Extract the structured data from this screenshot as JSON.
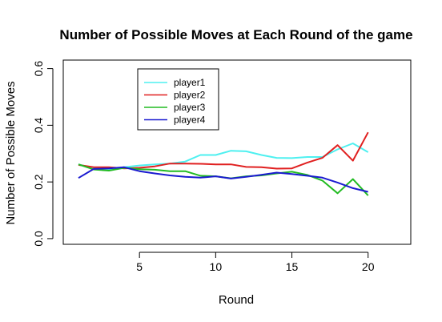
{
  "chart_data": {
    "type": "line",
    "title": "Number of Possible Moves at Each Round of the game",
    "xlabel": "Round",
    "ylabel": "Number of Possible Moves",
    "xlim": [
      0,
      22.8
    ],
    "ylim": [
      -0.02,
      0.63
    ],
    "xticks": [
      5,
      10,
      15,
      20
    ],
    "yticks": [
      0.0,
      0.2,
      0.4,
      0.6
    ],
    "xtick_labels": [
      "5",
      "10",
      "15",
      "20"
    ],
    "ytick_labels": [
      "0.0",
      "0.2",
      "0.4",
      "0.6"
    ],
    "grid": false,
    "legend_position": "top-left",
    "x": [
      1,
      2,
      3,
      4,
      5,
      6,
      7,
      8,
      9,
      10,
      11,
      12,
      13,
      14,
      15,
      16,
      17,
      18,
      19,
      20
    ],
    "series": [
      {
        "name": "player1",
        "color": "#4ef0f0",
        "values": [
          0.262,
          0.248,
          0.245,
          0.252,
          0.258,
          0.262,
          0.265,
          0.272,
          0.295,
          0.295,
          0.31,
          0.308,
          0.295,
          0.285,
          0.284,
          0.288,
          0.288,
          0.315,
          0.336,
          0.305
        ]
      },
      {
        "name": "player2",
        "color": "#e02020",
        "values": [
          0.26,
          0.252,
          0.252,
          0.248,
          0.25,
          0.255,
          0.265,
          0.265,
          0.264,
          0.262,
          0.262,
          0.253,
          0.252,
          0.247,
          0.248,
          0.268,
          0.285,
          0.33,
          0.275,
          0.375
        ]
      },
      {
        "name": "player3",
        "color": "#22bb22",
        "values": [
          0.262,
          0.244,
          0.24,
          0.25,
          0.245,
          0.243,
          0.238,
          0.238,
          0.222,
          0.22,
          0.213,
          0.22,
          0.223,
          0.23,
          0.236,
          0.225,
          0.205,
          0.16,
          0.21,
          0.152
        ]
      },
      {
        "name": "player4",
        "color": "#1a1ad0",
        "values": [
          0.214,
          0.246,
          0.248,
          0.252,
          0.238,
          0.23,
          0.223,
          0.218,
          0.215,
          0.22,
          0.212,
          0.218,
          0.225,
          0.233,
          0.228,
          0.222,
          0.215,
          0.198,
          0.178,
          0.165
        ]
      }
    ]
  }
}
